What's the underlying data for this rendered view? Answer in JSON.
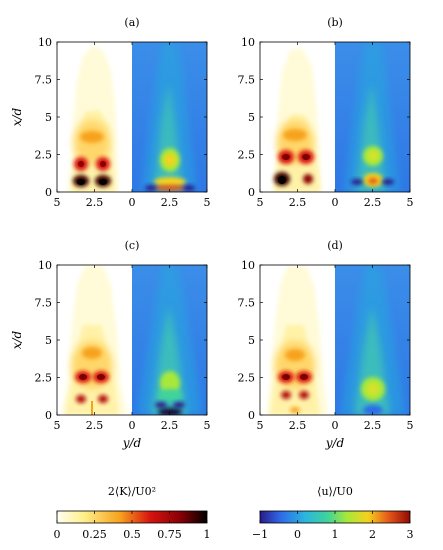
{
  "chart_data": {
    "type": "heatmap",
    "panels": [
      {
        "label": "(a)"
      },
      {
        "label": "(b)"
      },
      {
        "label": "(c)"
      },
      {
        "label": "(d)"
      }
    ],
    "x_axis": {
      "label": "y/d",
      "range": [
        -5,
        5
      ],
      "ticks": [
        -5,
        -2.5,
        0,
        2.5,
        5
      ],
      "tick_labels": [
        "5",
        "2.5",
        "0",
        "2.5",
        "5"
      ]
    },
    "y_axis": {
      "label": "x/d",
      "range": [
        0,
        10
      ],
      "ticks": [
        0,
        2.5,
        5,
        7.5,
        10
      ],
      "tick_labels": [
        "0",
        "2.5",
        "5",
        "7.5",
        "10"
      ]
    },
    "left_field": "2⟨K⟩/U0²",
    "right_field": "⟨u⟩/U0",
    "colorbars": [
      {
        "title": "2⟨K⟩/U0²",
        "range": [
          0,
          1
        ],
        "ticks": [
          0,
          0.25,
          0.5,
          0.75,
          1
        ],
        "tick_labels": [
          "0",
          "0.25",
          "0.5",
          "0.75",
          "1"
        ],
        "colors": [
          "#fffff4",
          "#ffef8a",
          "#f7a21c",
          "#d8140e",
          "#8a0005",
          "#000000"
        ]
      },
      {
        "title": "⟨u⟩/U0",
        "range": [
          -1,
          3
        ],
        "ticks": [
          -1,
          0,
          1,
          2,
          3
        ],
        "tick_labels": [
          "−1",
          "0",
          "1",
          "2",
          "3"
        ],
        "colors": [
          "#2a1a8c",
          "#2f6ce8",
          "#2bb5e0",
          "#3fd39b",
          "#a8e83a",
          "#f4d21c",
          "#e5561a",
          "#8f0a05"
        ]
      }
    ],
    "grid": false
  }
}
